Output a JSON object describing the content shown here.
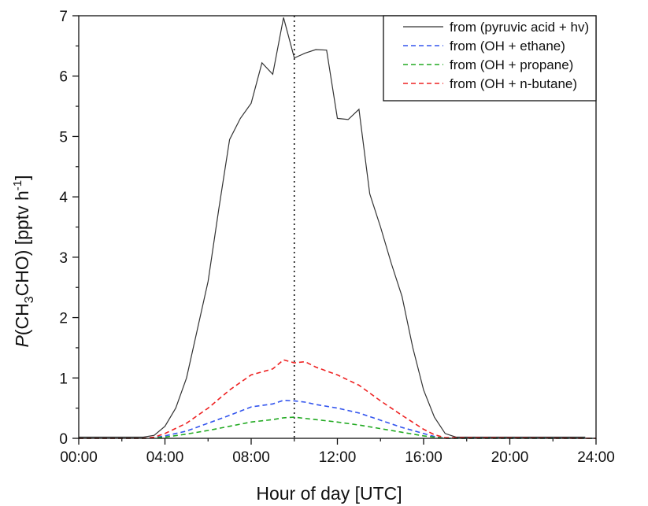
{
  "chart_data": {
    "type": "line",
    "xlabel": "Hour of day [UTC]",
    "ylabel": "P(CH3CHO) [pptv h-1]",
    "ylabel_parts": {
      "italic": "P",
      "pre": "(CH",
      "sub": "3",
      "post": "CHO) [pptv h",
      "sup": "-1",
      "end": "]"
    },
    "xlim": [
      0,
      24
    ],
    "ylim": [
      0,
      7
    ],
    "x_ticks": [
      "00:00",
      "04:00",
      "08:00",
      "12:00",
      "16:00",
      "20:00",
      "24:00"
    ],
    "y_ticks": [
      "0",
      "1",
      "2",
      "3",
      "4",
      "5",
      "6",
      "7"
    ],
    "vline_x": 10,
    "legend_position": "top-right",
    "series": [
      {
        "name": "from (pyruvic acid + hv)",
        "color": "#333333",
        "style": "solid",
        "points": [
          [
            0,
            0.02
          ],
          [
            1,
            0.02
          ],
          [
            2,
            0.02
          ],
          [
            3,
            0.02
          ],
          [
            3.5,
            0.05
          ],
          [
            4,
            0.2
          ],
          [
            4.5,
            0.5
          ],
          [
            5,
            1.0
          ],
          [
            5.5,
            1.8
          ],
          [
            6,
            2.6
          ],
          [
            6.5,
            3.8
          ],
          [
            7,
            4.95
          ],
          [
            7.5,
            5.3
          ],
          [
            8,
            5.55
          ],
          [
            8.5,
            6.22
          ],
          [
            9,
            6.03
          ],
          [
            9.5,
            6.97
          ],
          [
            10,
            6.3
          ],
          [
            10.5,
            6.38
          ],
          [
            11,
            6.44
          ],
          [
            11.5,
            6.43
          ],
          [
            12,
            5.3
          ],
          [
            12.5,
            5.28
          ],
          [
            13,
            5.45
          ],
          [
            13.5,
            4.05
          ],
          [
            14,
            3.5
          ],
          [
            14.5,
            2.9
          ],
          [
            15,
            2.35
          ],
          [
            15.5,
            1.5
          ],
          [
            16,
            0.8
          ],
          [
            16.5,
            0.35
          ],
          [
            17,
            0.08
          ],
          [
            17.5,
            0.02
          ],
          [
            18,
            0.02
          ],
          [
            20,
            0.02
          ],
          [
            22,
            0.02
          ],
          [
            23.5,
            0.02
          ]
        ]
      },
      {
        "name": "from (OH + ethane)",
        "color": "#3355ee",
        "style": "dashed",
        "points": [
          [
            0,
            0.0
          ],
          [
            3,
            0.0
          ],
          [
            3.5,
            0.01
          ],
          [
            4,
            0.04
          ],
          [
            5,
            0.12
          ],
          [
            6,
            0.25
          ],
          [
            7,
            0.38
          ],
          [
            8,
            0.52
          ],
          [
            9,
            0.57
          ],
          [
            9.5,
            0.63
          ],
          [
            10,
            0.62
          ],
          [
            10.5,
            0.6
          ],
          [
            11,
            0.56
          ],
          [
            12,
            0.5
          ],
          [
            13,
            0.42
          ],
          [
            14,
            0.3
          ],
          [
            15,
            0.18
          ],
          [
            16,
            0.08
          ],
          [
            16.5,
            0.03
          ],
          [
            17,
            0.0
          ],
          [
            24,
            0.0
          ]
        ]
      },
      {
        "name": "from (OH + propane)",
        "color": "#22aa22",
        "style": "dashed",
        "points": [
          [
            0,
            0.0
          ],
          [
            3,
            0.0
          ],
          [
            3.5,
            0.01
          ],
          [
            4,
            0.02
          ],
          [
            5,
            0.07
          ],
          [
            6,
            0.13
          ],
          [
            7,
            0.2
          ],
          [
            8,
            0.27
          ],
          [
            9,
            0.31
          ],
          [
            9.5,
            0.34
          ],
          [
            10,
            0.35
          ],
          [
            10.5,
            0.33
          ],
          [
            11,
            0.31
          ],
          [
            12,
            0.27
          ],
          [
            13,
            0.22
          ],
          [
            14,
            0.16
          ],
          [
            15,
            0.1
          ],
          [
            16,
            0.04
          ],
          [
            16.5,
            0.02
          ],
          [
            17,
            0.0
          ],
          [
            24,
            0.0
          ]
        ]
      },
      {
        "name": "from (OH + n-butane)",
        "color": "#ee2222",
        "style": "dashed",
        "points": [
          [
            0,
            0.0
          ],
          [
            3,
            0.0
          ],
          [
            3.5,
            0.02
          ],
          [
            4,
            0.08
          ],
          [
            5,
            0.25
          ],
          [
            6,
            0.5
          ],
          [
            7,
            0.8
          ],
          [
            8,
            1.05
          ],
          [
            9,
            1.15
          ],
          [
            9.5,
            1.3
          ],
          [
            10,
            1.25
          ],
          [
            10.5,
            1.27
          ],
          [
            11,
            1.18
          ],
          [
            12,
            1.05
          ],
          [
            13,
            0.88
          ],
          [
            14,
            0.62
          ],
          [
            15,
            0.38
          ],
          [
            16,
            0.15
          ],
          [
            16.5,
            0.06
          ],
          [
            17,
            0.01
          ],
          [
            24,
            0.0
          ]
        ]
      }
    ]
  }
}
